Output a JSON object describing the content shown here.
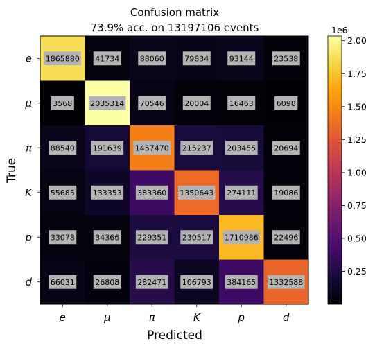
{
  "chart_data": {
    "type": "heatmap",
    "title": "Confusion matrix",
    "subtitle": "73.9% acc. on 13197106 events",
    "xlabel": "Predicted",
    "ylabel": "True",
    "x_categories": [
      "e",
      "μ",
      "π",
      "K",
      "p",
      "d"
    ],
    "y_categories": [
      "e",
      "μ",
      "π",
      "K",
      "p",
      "d"
    ],
    "matrix": [
      [
        1865880,
        41734,
        88060,
        79834,
        93144,
        23538
      ],
      [
        3568,
        2035314,
        70546,
        20004,
        16463,
        6098
      ],
      [
        88540,
        191639,
        1457470,
        215237,
        203455,
        20694
      ],
      [
        55685,
        133353,
        383360,
        1350643,
        274111,
        19086
      ],
      [
        33078,
        34366,
        229351,
        230517,
        1710986,
        22496
      ],
      [
        66031,
        26808,
        282471,
        106793,
        384165,
        1332588
      ]
    ],
    "colormap": "inferno",
    "colorbar": {
      "range": [
        0,
        2035314
      ],
      "ticks": [
        0.25,
        0.5,
        0.75,
        1.0,
        1.25,
        1.5,
        1.75,
        2.0
      ],
      "tick_labels": [
        "0.25",
        "0.50",
        "0.75",
        "1.00",
        "1.25",
        "1.50",
        "1.75",
        "2.00"
      ],
      "offset_label": "1e6",
      "scale": 1000000
    },
    "label_box_color": "#b3b3b3"
  }
}
